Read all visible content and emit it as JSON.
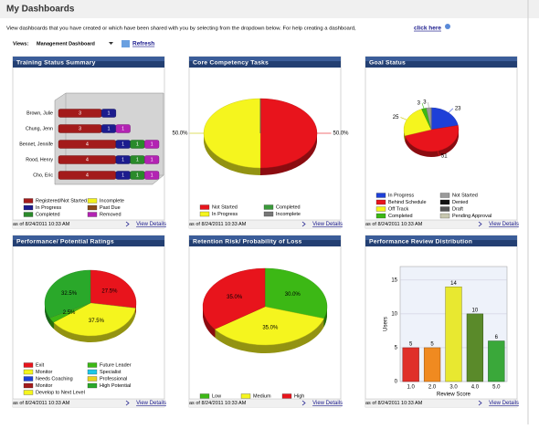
{
  "header": {
    "title": "My Dashboards",
    "description": "View dashboards that you have created or which have been shared with you by selecting from the dropdown below. For help creating a dashboard,",
    "help_link": "click here",
    "views_label": "Views:",
    "selected_view": "Management Dashboard",
    "refresh": "Refresh"
  },
  "panels": [
    {
      "as_of": "as of 8/24/2011 10:33 AM",
      "link": "View Details"
    },
    {
      "as_of": "as of 8/24/2011 10:33 AM",
      "link": "View Details"
    },
    {
      "as_of": "as of 8/24/2011 10:33 AM",
      "link": "View Details"
    },
    {
      "as_of": "as of 8/24/2011 10:33 AM",
      "link": "View Details"
    },
    {
      "as_of": "as of 8/24/2011 10:33 AM",
      "link": "View Details"
    },
    {
      "as_of": "as of 8/24/2011 10:33 AM",
      "link": "View Details"
    }
  ],
  "chart_data": [
    {
      "type": "stacked-bar",
      "title": "Training Status Summary",
      "categories": [
        "Brown, Julie",
        "Chung, Jenn",
        "Bennet, Jennife",
        "Rood, Henry",
        "Cho, Eric"
      ],
      "xlim": [
        0,
        7
      ],
      "legend": "bottom",
      "series": [
        {
          "name": "Registered/Not Started",
          "color": "#a31b1b",
          "values": [
            3,
            3,
            4,
            4,
            4
          ]
        },
        {
          "name": "In Progress",
          "color": "#1c1c8e",
          "values": [
            1,
            1,
            1,
            1,
            1
          ]
        },
        {
          "name": "Completed",
          "color": "#2a8a2a",
          "values": [
            0,
            0,
            1,
            1,
            1
          ]
        },
        {
          "name": "Incomplete",
          "color": "#f2f21c",
          "values": [
            0,
            0,
            0,
            0,
            0
          ]
        },
        {
          "name": "Past Due",
          "color": "#8a4a1a",
          "values": [
            0,
            0,
            0,
            0,
            0
          ]
        },
        {
          "name": "Removed",
          "color": "#b323b3",
          "values": [
            0,
            1,
            1,
            1,
            1
          ]
        }
      ]
    },
    {
      "type": "pie",
      "title": "Core Competency Tasks",
      "categories": [
        "Not Started",
        "In Progress",
        "Completed",
        "Incomplete"
      ],
      "values": [
        50.0,
        50.0,
        0,
        0
      ],
      "value_labels": [
        "50.0%",
        "50.0%",
        null,
        null
      ],
      "colors": [
        "#e8141c",
        "#f5f51e",
        "#3a9a3a",
        "#777777"
      ],
      "labels": "outside",
      "legend": "bottom"
    },
    {
      "type": "pie",
      "title": "Goal Status",
      "categories": [
        "In Progress",
        "Behind Schedule",
        "Off Track",
        "Completed",
        "Not Started",
        "Denied",
        "Draft",
        "Pending Approval"
      ],
      "values": [
        23,
        51,
        25,
        3,
        3,
        0,
        0,
        0
      ],
      "value_labels": [
        "23",
        "51",
        "25",
        "3",
        "3",
        null,
        null,
        null
      ],
      "colors": [
        "#1e40d8",
        "#e8141c",
        "#f5f51e",
        "#3cb815",
        "#9a9a9a",
        "#111111",
        "#555555",
        "#c8c8b0"
      ],
      "labels": "outside",
      "legend": "bottom"
    },
    {
      "type": "pie",
      "title": "Performance/ Potential Ratings",
      "categories": [
        "Exit",
        "Monitor",
        "Needs Coaching",
        "Monitor",
        "Develop to Next Level",
        "Future Leader",
        "Specialist",
        "Professional",
        "High Potential"
      ],
      "values": [
        27.5,
        0,
        0,
        0,
        37.5,
        2.5,
        0,
        0,
        32.5
      ],
      "value_labels": [
        "27.5%",
        null,
        null,
        null,
        "37.5%",
        "2.5%",
        null,
        null,
        "32.5%"
      ],
      "colors": [
        "#e8141c",
        "#f5f51e",
        "#1e40d8",
        "#a31b1b",
        "#f5f51e",
        "#3cb815",
        "#1ec8e8",
        "#e8d41e",
        "#2aa82a"
      ],
      "labels": "inside",
      "legend": "bottom"
    },
    {
      "type": "pie",
      "title": "Retention Risk/ Probability of Loss",
      "categories": [
        "Low",
        "Medium",
        "High"
      ],
      "values": [
        30.0,
        35.0,
        35.0
      ],
      "value_labels": [
        "30.0%",
        "35.0%",
        "35.0%"
      ],
      "colors": [
        "#3cb815",
        "#f5f51e",
        "#e8141c"
      ],
      "labels": "inside",
      "legend": "bottom-row"
    },
    {
      "type": "bar",
      "title": "Performance Review Distribution",
      "categories": [
        "1.0",
        "2.0",
        "3.0",
        "4.0",
        "5.0"
      ],
      "values": [
        5,
        5,
        14,
        10,
        6
      ],
      "colors": [
        "#e0302a",
        "#f08a20",
        "#e8e830",
        "#5a8a2a",
        "#3aa83a"
      ],
      "ylim": [
        0,
        17
      ],
      "yticks": [
        0,
        5,
        10,
        15
      ],
      "ylabel": "Users",
      "xlabel": "Review Score",
      "grid": true
    }
  ]
}
